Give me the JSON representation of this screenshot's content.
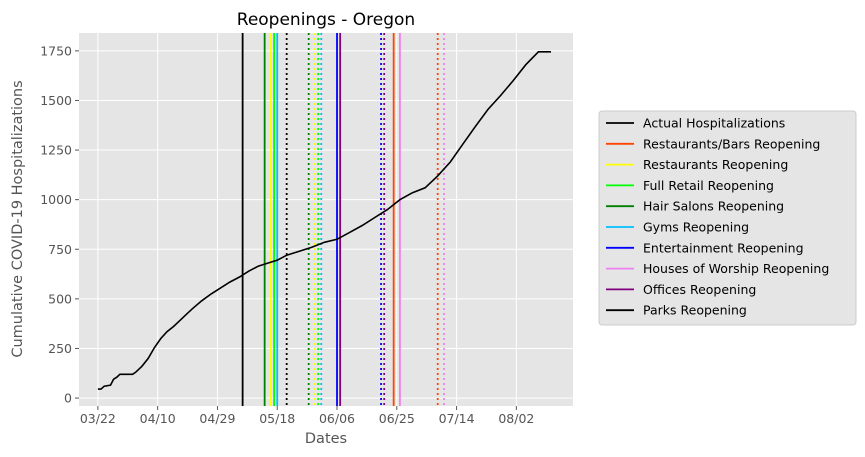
{
  "chart_data": {
    "type": "line",
    "title": "Reopenings - Oregon",
    "xlabel": "Dates",
    "ylabel": "Cumulative COVID-19 Hospitalizations",
    "x_ticks": [
      "03/22",
      "04/10",
      "04/29",
      "05/18",
      "06/06",
      "06/25",
      "07/14",
      "08/02"
    ],
    "x_tick_days": [
      0,
      19,
      38,
      57,
      76,
      95,
      114,
      133
    ],
    "xlim_days": [
      -6,
      151
    ],
    "y_ticks": [
      0,
      250,
      500,
      750,
      1000,
      1250,
      1500,
      1750
    ],
    "ylim": [
      -40,
      1840
    ],
    "grid": true,
    "legend_placement": "center-right outside",
    "series": [
      {
        "name": "Actual Hospitalizations",
        "color": "#000000",
        "x_days": [
          0,
          1,
          2,
          4,
          5,
          6,
          7,
          8,
          11,
          12,
          14,
          16,
          18,
          20,
          22,
          24,
          26,
          28,
          30,
          33,
          36,
          39,
          42,
          45,
          48,
          51,
          54,
          57,
          60,
          64,
          68,
          72,
          76,
          80,
          84,
          88,
          92,
          96,
          100,
          104,
          108,
          112,
          116,
          120,
          124,
          128,
          132,
          136,
          140,
          144
        ],
        "y": [
          45,
          45,
          60,
          65,
          95,
          105,
          120,
          120,
          120,
          130,
          160,
          200,
          255,
          300,
          335,
          360,
          390,
          420,
          450,
          490,
          525,
          555,
          585,
          610,
          640,
          665,
          680,
          695,
          720,
          740,
          760,
          785,
          800,
          835,
          870,
          910,
          950,
          1000,
          1035,
          1060,
          1120,
          1190,
          1280,
          1370,
          1455,
          1525,
          1600,
          1680,
          1745,
          1745
        ]
      }
    ],
    "reopenings": [
      {
        "name": "Restaurants/Bars Reopening",
        "color": "#ff4500",
        "solid_day": 94,
        "dotted_day": 108
      },
      {
        "name": "Restaurants Reopening",
        "color": "#ffff00",
        "solid_day": 55,
        "dotted_day": 69
      },
      {
        "name": "Full Retail Reopening",
        "color": "#00ff00",
        "solid_day": 56,
        "dotted_day": 70
      },
      {
        "name": "Hair Salons Reopening",
        "color": "#008000",
        "solid_day": 53,
        "dotted_day": 67
      },
      {
        "name": "Gyms Reopening",
        "color": "#00bfff",
        "solid_day": 57,
        "dotted_day": 71
      },
      {
        "name": "Entertainment Reopening",
        "color": "#0000ff",
        "solid_day": 76,
        "dotted_day": 90
      },
      {
        "name": "Houses of Worship Reopening",
        "color": "#ee82ee",
        "solid_day": 96,
        "dotted_day": 110
      },
      {
        "name": "Offices Reopening",
        "color": "#800080",
        "solid_day": 77,
        "dotted_day": 91
      },
      {
        "name": "Parks Reopening",
        "color": "#000000",
        "solid_day": 46,
        "dotted_day": 60
      }
    ],
    "legend_entries": [
      {
        "name": "Actual Hospitalizations",
        "color": "#000000"
      },
      {
        "name": "Restaurants/Bars Reopening",
        "color": "#ff4500"
      },
      {
        "name": "Restaurants Reopening",
        "color": "#ffff00"
      },
      {
        "name": "Full Retail Reopening",
        "color": "#00ff00"
      },
      {
        "name": "Hair Salons Reopening",
        "color": "#008000"
      },
      {
        "name": "Gyms Reopening",
        "color": "#00bfff"
      },
      {
        "name": "Entertainment Reopening",
        "color": "#0000ff"
      },
      {
        "name": "Houses of Worship Reopening",
        "color": "#ee82ee"
      },
      {
        "name": "Offices Reopening",
        "color": "#800080"
      },
      {
        "name": "Parks Reopening",
        "color": "#000000"
      }
    ]
  }
}
